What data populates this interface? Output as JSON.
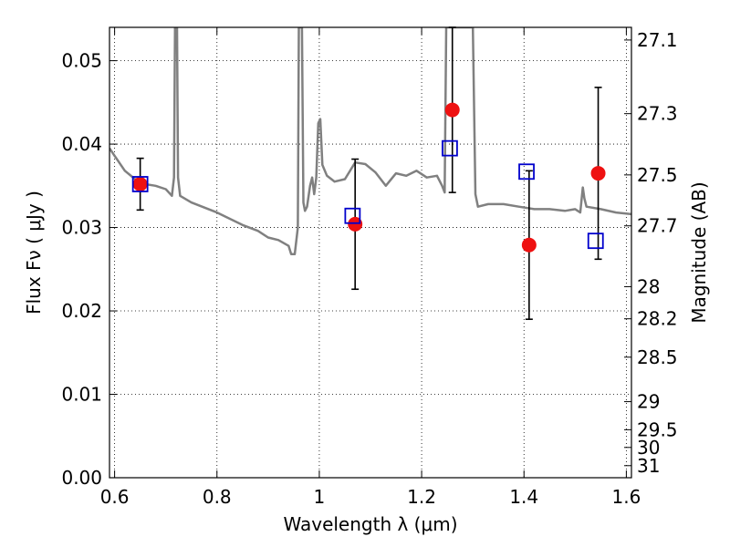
{
  "chart_data": {
    "type": "scatter",
    "title": "",
    "xlabel": "Wavelength  λ (μm)",
    "ylabel": "Flux  Fν  ( μJy )",
    "y2label": "Magnitude (AB)",
    "xlim": [
      0.59,
      1.61
    ],
    "ylim": [
      0.0,
      0.054
    ],
    "grid": true,
    "grid_style": "dotted",
    "x_ticks": [
      {
        "value": 0.6,
        "label": "0.6"
      },
      {
        "value": 0.8,
        "label": "0.8"
      },
      {
        "value": 1.0,
        "label": "1"
      },
      {
        "value": 1.2,
        "label": "1.2"
      },
      {
        "value": 1.4,
        "label": "1.4"
      },
      {
        "value": 1.6,
        "label": "1.6"
      }
    ],
    "y_ticks": [
      {
        "value": 0.0,
        "label": "0.00"
      },
      {
        "value": 0.01,
        "label": "0.01"
      },
      {
        "value": 0.02,
        "label": "0.02"
      },
      {
        "value": 0.03,
        "label": "0.03"
      },
      {
        "value": 0.04,
        "label": "0.04"
      },
      {
        "value": 0.05,
        "label": "0.05"
      }
    ],
    "y2_ticks": [
      {
        "mag": 27.1,
        "label": "27.1"
      },
      {
        "mag": 27.3,
        "label": "27.3"
      },
      {
        "mag": 27.5,
        "label": "27.5"
      },
      {
        "mag": 27.7,
        "label": "27.7"
      },
      {
        "mag": 28.0,
        "label": "28"
      },
      {
        "mag": 28.2,
        "label": "28.2"
      },
      {
        "mag": 28.5,
        "label": "28.5"
      },
      {
        "mag": 29.0,
        "label": "29"
      },
      {
        "mag": 29.5,
        "label": "29.5"
      },
      {
        "mag": 30.0,
        "label": "30"
      },
      {
        "mag": 31.0,
        "label": "31"
      }
    ],
    "colors": {
      "spectrum": "#808080",
      "observed": "#ee1111",
      "model": "#0000cc",
      "errorbar": "#000000",
      "grid": "#000000"
    },
    "series": [
      {
        "kind": "line",
        "points": [
          [
            0.59,
            0.0395
          ],
          [
            0.6,
            0.0386
          ],
          [
            0.62,
            0.0368
          ],
          [
            0.64,
            0.0358
          ],
          [
            0.66,
            0.0352
          ],
          [
            0.68,
            0.035
          ],
          [
            0.7,
            0.0346
          ],
          [
            0.712,
            0.0338
          ],
          [
            0.716,
            0.036
          ],
          [
            0.718,
            0.054
          ],
          [
            0.722,
            0.054
          ],
          [
            0.724,
            0.036
          ],
          [
            0.728,
            0.0338
          ],
          [
            0.75,
            0.033
          ],
          [
            0.8,
            0.0318
          ],
          [
            0.85,
            0.0303
          ],
          [
            0.88,
            0.0296
          ],
          [
            0.9,
            0.0288
          ],
          [
            0.92,
            0.0285
          ],
          [
            0.94,
            0.0278
          ],
          [
            0.945,
            0.0268
          ],
          [
            0.952,
            0.0268
          ],
          [
            0.958,
            0.03
          ],
          [
            0.96,
            0.054
          ],
          [
            0.966,
            0.054
          ],
          [
            0.969,
            0.033
          ],
          [
            0.972,
            0.032
          ],
          [
            0.976,
            0.0325
          ],
          [
            0.982,
            0.035
          ],
          [
            0.986,
            0.036
          ],
          [
            0.99,
            0.034
          ],
          [
            0.994,
            0.036
          ],
          [
            0.998,
            0.0425
          ],
          [
            1.002,
            0.043
          ],
          [
            1.006,
            0.0375
          ],
          [
            1.015,
            0.0362
          ],
          [
            1.03,
            0.0355
          ],
          [
            1.05,
            0.0358
          ],
          [
            1.07,
            0.0378
          ],
          [
            1.09,
            0.0376
          ],
          [
            1.11,
            0.0366
          ],
          [
            1.13,
            0.035
          ],
          [
            1.15,
            0.0365
          ],
          [
            1.17,
            0.0362
          ],
          [
            1.19,
            0.0368
          ],
          [
            1.21,
            0.036
          ],
          [
            1.23,
            0.0362
          ],
          [
            1.24,
            0.035
          ],
          [
            1.245,
            0.0342
          ],
          [
            1.248,
            0.054
          ],
          [
            1.3,
            0.054
          ],
          [
            1.305,
            0.034
          ],
          [
            1.31,
            0.0325
          ],
          [
            1.33,
            0.0328
          ],
          [
            1.36,
            0.0328
          ],
          [
            1.39,
            0.0325
          ],
          [
            1.42,
            0.0322
          ],
          [
            1.45,
            0.0322
          ],
          [
            1.48,
            0.032
          ],
          [
            1.5,
            0.0322
          ],
          [
            1.51,
            0.0318
          ],
          [
            1.515,
            0.0348
          ],
          [
            1.518,
            0.0335
          ],
          [
            1.522,
            0.0325
          ],
          [
            1.55,
            0.0322
          ],
          [
            1.58,
            0.0318
          ],
          [
            1.61,
            0.0316
          ]
        ]
      },
      {
        "kind": "observed",
        "points": [
          {
            "x": 0.65,
            "y": 0.0352,
            "yerr": 0.0031
          },
          {
            "x": 1.07,
            "y": 0.0304,
            "yerr": 0.0078
          },
          {
            "x": 1.26,
            "y": 0.0441,
            "yerr": 0.0099
          },
          {
            "x": 1.41,
            "y": 0.0279,
            "yerr": 0.0089
          },
          {
            "x": 1.545,
            "y": 0.0365,
            "yerr": 0.0103
          }
        ]
      },
      {
        "kind": "model",
        "points": [
          {
            "x": 0.65,
            "y": 0.0352
          },
          {
            "x": 1.065,
            "y": 0.0314
          },
          {
            "x": 1.255,
            "y": 0.0395
          },
          {
            "x": 1.405,
            "y": 0.0367
          },
          {
            "x": 1.54,
            "y": 0.0284
          }
        ]
      }
    ]
  }
}
